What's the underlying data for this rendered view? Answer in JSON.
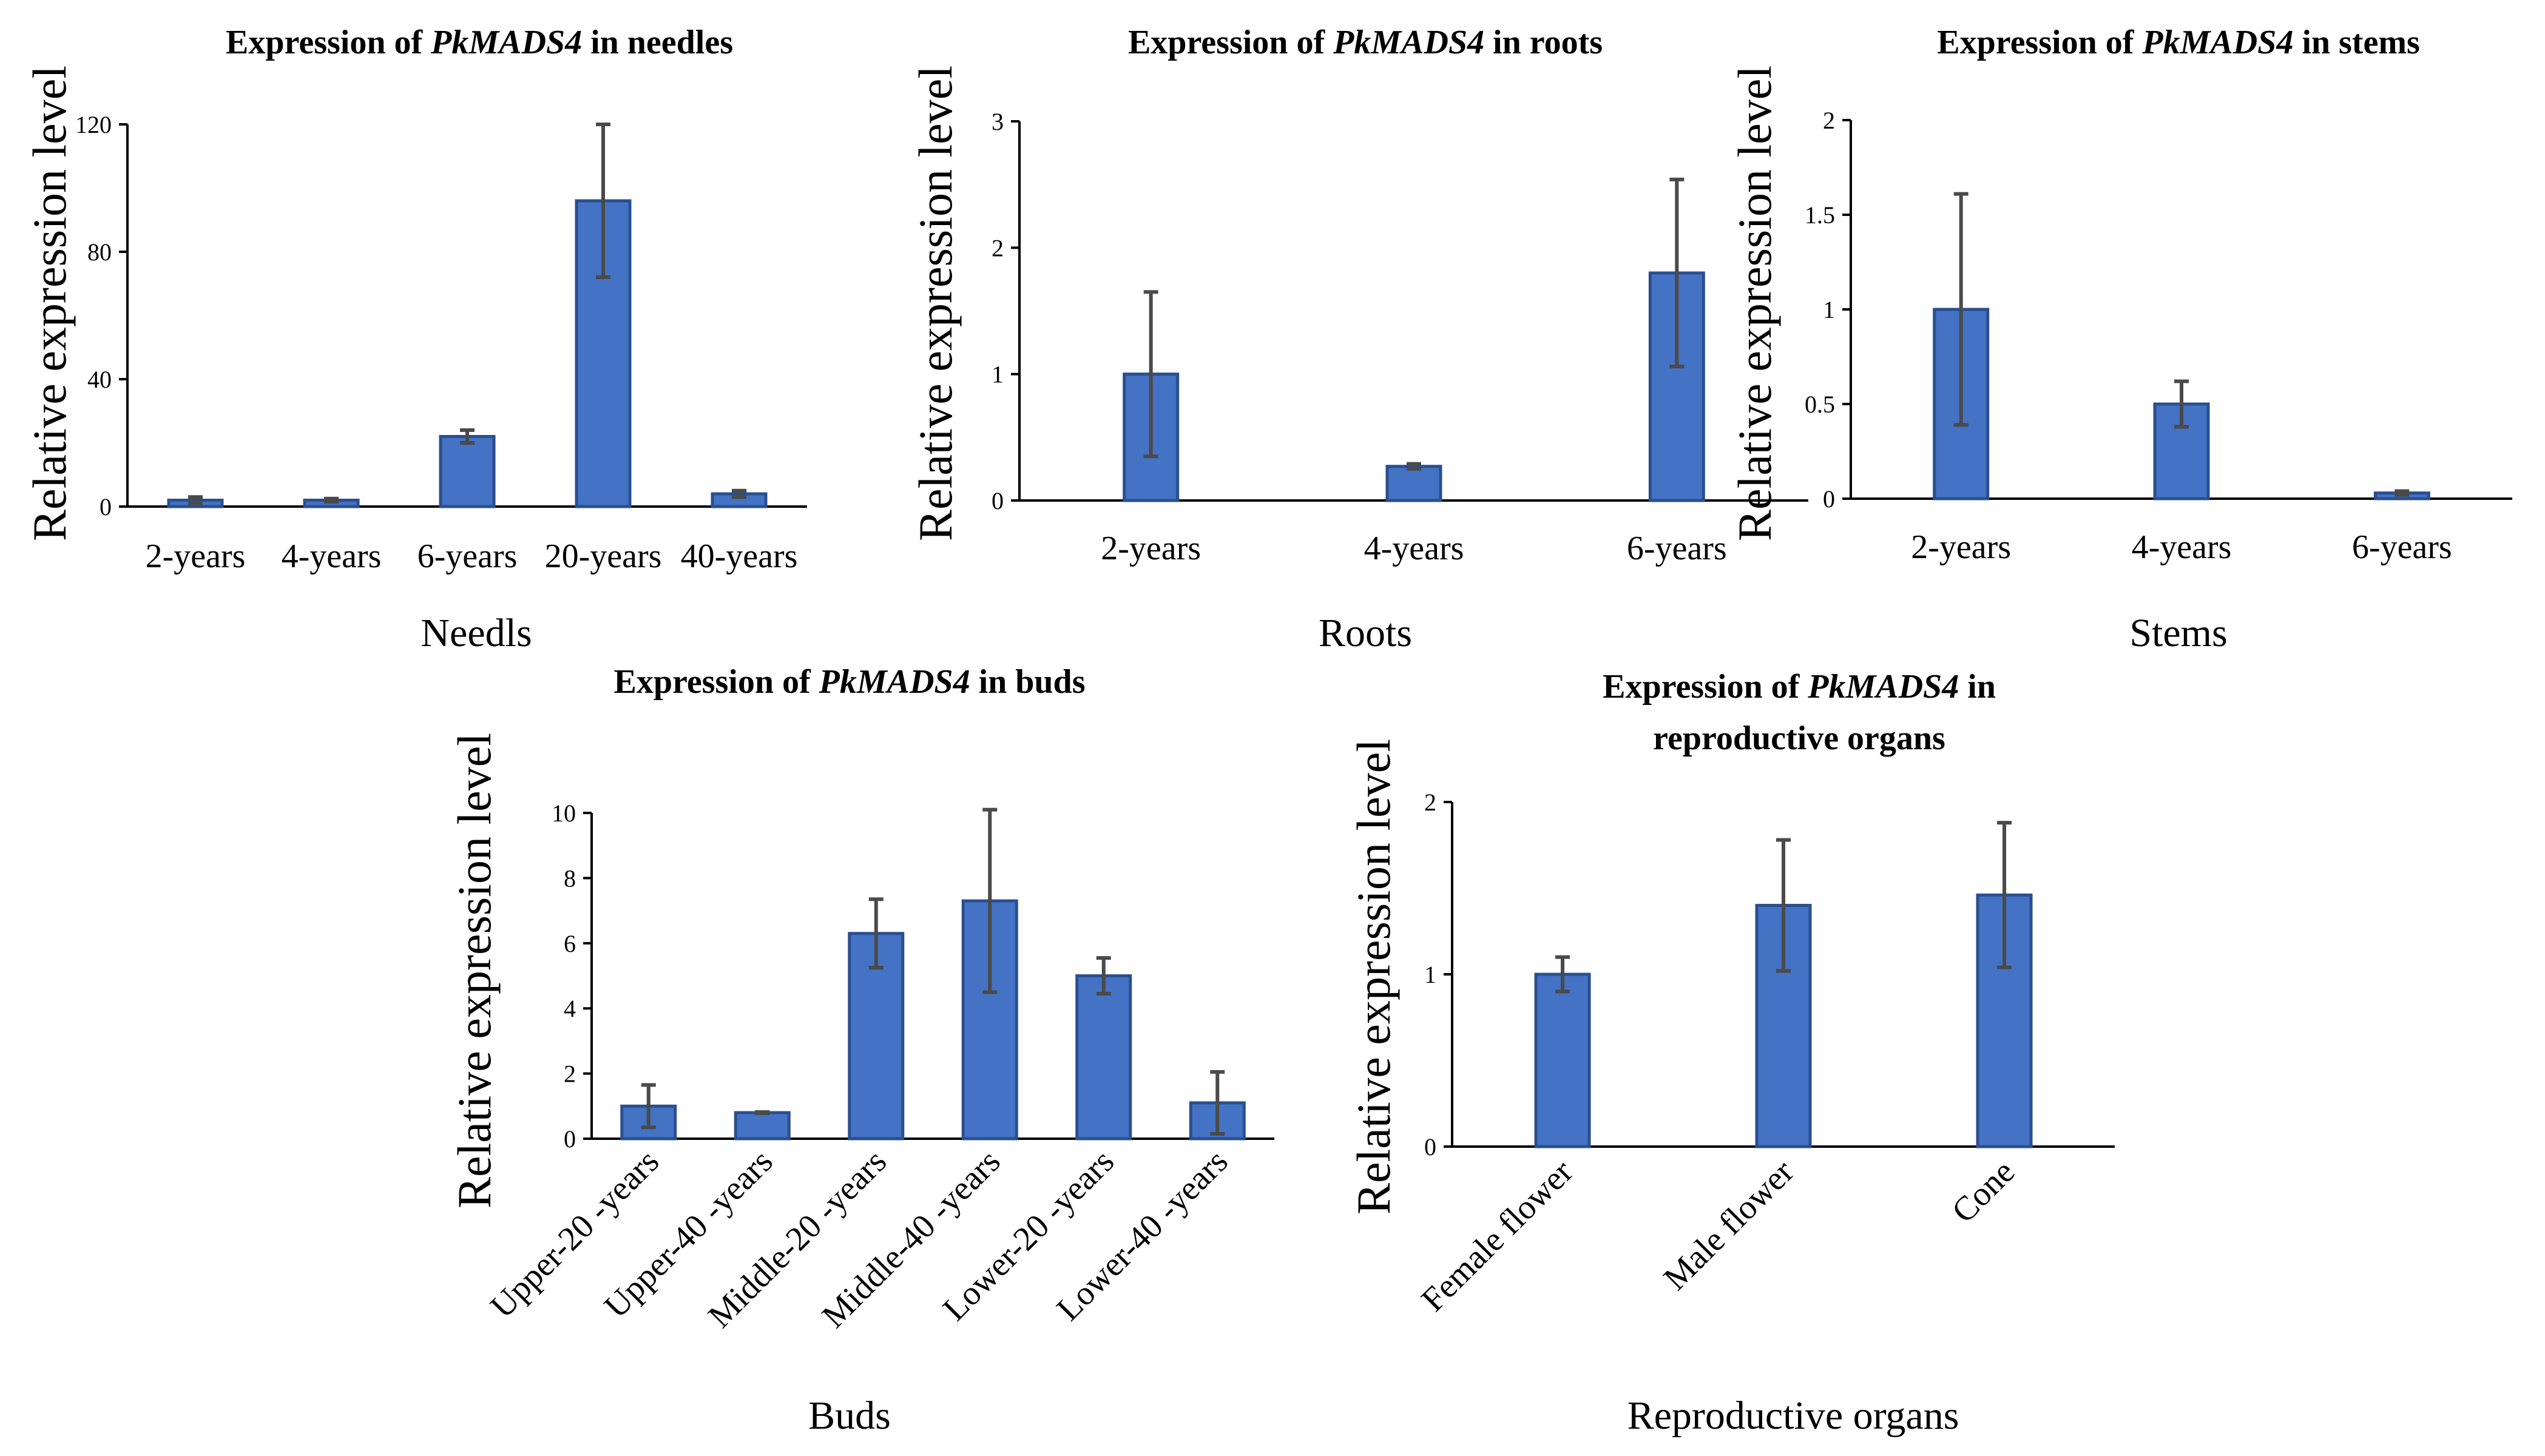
{
  "colors": {
    "bar": "#4472c4",
    "bar_edge": "#2a4f8f",
    "error": "#4a4a4a",
    "axis": "#000000"
  },
  "chart_data": [
    {
      "type": "bar",
      "title_pre": "Expression of ",
      "title_gene": "PkMADS4",
      "title_post": " in needles",
      "xlabel": "Needls",
      "ylabel": "Relative expression level",
      "categories": [
        "2-years",
        "4-years",
        "6-years",
        "20-years",
        "40-years"
      ],
      "values": [
        2,
        2,
        22,
        96,
        4
      ],
      "errors": [
        1,
        0.5,
        2,
        24,
        1
      ],
      "ylim": [
        0,
        120
      ],
      "yticks": [
        "0",
        "40",
        "80",
        "120"
      ],
      "ytick_values": [
        0,
        40,
        80,
        120
      ]
    },
    {
      "type": "bar",
      "title_pre": "Expression of ",
      "title_gene": "PkMADS4",
      "title_post": " in roots",
      "xlabel": "Roots",
      "ylabel": "Relative expression level",
      "categories": [
        "2-years",
        "4-years",
        "6-years"
      ],
      "values": [
        1.0,
        0.27,
        1.8
      ],
      "errors": [
        0.65,
        0.02,
        0.74
      ],
      "ylim": [
        0,
        3
      ],
      "yticks": [
        "0",
        "1",
        "2",
        "3"
      ],
      "ytick_values": [
        0,
        1,
        2,
        3
      ]
    },
    {
      "type": "bar",
      "title_pre": "Expression of ",
      "title_gene": "PkMADS4",
      "title_post": " in stems",
      "xlabel": "Stems",
      "ylabel": "Relative expression level",
      "categories": [
        "2-years",
        "4-years",
        "6-years"
      ],
      "values": [
        1.0,
        0.5,
        0.03
      ],
      "errors": [
        0.61,
        0.12,
        0.01
      ],
      "ylim": [
        0,
        2
      ],
      "yticks": [
        "0",
        "0.5",
        "1",
        "1.5",
        "2"
      ],
      "ytick_values": [
        0,
        0.5,
        1,
        1.5,
        2
      ]
    },
    {
      "type": "bar",
      "title_pre": "Expression of ",
      "title_gene": "PkMADS4",
      "title_post": " in buds",
      "xlabel": "Buds",
      "ylabel": "Relative expression level",
      "categories": [
        "Upper-20 -years",
        "Upper-40 -years",
        "Middle-20 -years",
        "Middle-40 -years",
        "Lower-20 -years",
        "Lower-40 -years"
      ],
      "values": [
        1.0,
        0.8,
        6.3,
        7.3,
        5.0,
        1.1
      ],
      "errors": [
        0.65,
        0.02,
        1.05,
        2.8,
        0.55,
        0.95
      ],
      "ylim": [
        0,
        10
      ],
      "yticks": [
        "0",
        "2",
        "4",
        "6",
        "8",
        "10"
      ],
      "ytick_values": [
        0,
        2,
        4,
        6,
        8,
        10
      ]
    },
    {
      "type": "bar",
      "title_pre": "Expression of ",
      "title_gene": "PkMADS4",
      "title_post": " in",
      "title_line2": "reproductive organs",
      "xlabel": "Reproductive organs",
      "ylabel": "Relative expression level",
      "categories": [
        "Female flower",
        "Male flower",
        "Cone"
      ],
      "values": [
        1.0,
        1.4,
        1.46
      ],
      "errors": [
        0.1,
        0.38,
        0.42
      ],
      "ylim": [
        0,
        2
      ],
      "yticks": [
        "0",
        "1",
        "2"
      ],
      "ytick_values": [
        0,
        1,
        2
      ]
    }
  ]
}
